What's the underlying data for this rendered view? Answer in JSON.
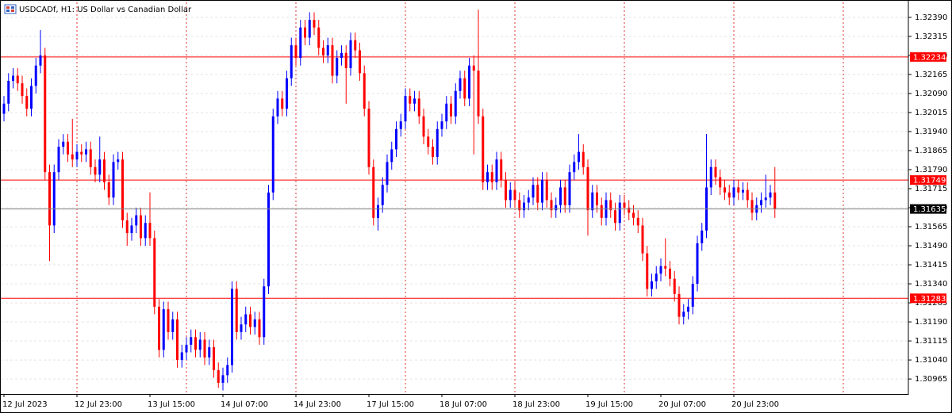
{
  "chart_data": {
    "type": "candlestick",
    "title": "USDCADf, H1:  US Dollar vs Canadian Dollar",
    "up_color": "#0000ff",
    "down_color": "#ff0000",
    "ylim": [
      1.30906,
      1.32449
    ],
    "yticks": [
      {
        "value": 1.3239,
        "label": "1.32390"
      },
      {
        "value": 1.32315,
        "label": "1.32315"
      },
      {
        "value": 1.3224,
        "label": "1.32240"
      },
      {
        "value": 1.32165,
        "label": "1.32165"
      },
      {
        "value": 1.3209,
        "label": "1.32090"
      },
      {
        "value": 1.32015,
        "label": "1.32015"
      },
      {
        "value": 1.3194,
        "label": "1.31940"
      },
      {
        "value": 1.31865,
        "label": "1.31865"
      },
      {
        "value": 1.3179,
        "label": "1.31790"
      },
      {
        "value": 1.31715,
        "label": "1.31715"
      },
      {
        "value": 1.3164,
        "label": "1.31640"
      },
      {
        "value": 1.31565,
        "label": "1.31565"
      },
      {
        "value": 1.3149,
        "label": "1.31490"
      },
      {
        "value": 1.31415,
        "label": "1.31415"
      },
      {
        "value": 1.3134,
        "label": "1.31340"
      },
      {
        "value": 1.31265,
        "label": "1.31265"
      },
      {
        "value": 1.3119,
        "label": "1.31190"
      },
      {
        "value": 1.31115,
        "label": "1.31115"
      },
      {
        "value": 1.3104,
        "label": "1.31040"
      },
      {
        "value": 1.30965,
        "label": "1.30965"
      }
    ],
    "grid": true,
    "x_tick_labels": [
      "12 Jul 2023",
      "12 Jul 23:00",
      "13 Jul 15:00",
      "14 Jul 07:00",
      "14 Jul 23:00",
      "17 Jul 15:00",
      "18 Jul 07:00",
      "18 Jul 23:00",
      "19 Jul 15:00",
      "20 Jul 07:00",
      "20 Jul 23:00"
    ],
    "levels": [
      1.32234,
      1.31749,
      1.31283
    ],
    "level_color": "#ff0000",
    "bid": 1.31635,
    "bid_color": "#808080",
    "candles": [
      [
        1.3201,
        1.3208,
        1.3198,
        1.3205
      ],
      [
        1.3205,
        1.3217,
        1.3202,
        1.3214
      ],
      [
        1.3214,
        1.3219,
        1.3211,
        1.3216
      ],
      [
        1.3216,
        1.3219,
        1.321,
        1.3213
      ],
      [
        1.3213,
        1.3216,
        1.3205,
        1.3208
      ],
      [
        1.3208,
        1.3211,
        1.32,
        1.3203
      ],
      [
        1.3203,
        1.3215,
        1.32,
        1.3212
      ],
      [
        1.3212,
        1.3223,
        1.3209,
        1.322
      ],
      [
        1.322,
        1.3234,
        1.3217,
        1.3224
      ],
      [
        1.3224,
        1.3227,
        1.3175,
        1.3178
      ],
      [
        1.3178,
        1.3181,
        1.3143,
        1.3157
      ],
      [
        1.3157,
        1.3181,
        1.3154,
        1.3178
      ],
      [
        1.3178,
        1.3191,
        1.3175,
        1.3188
      ],
      [
        1.3188,
        1.3193,
        1.3185,
        1.319
      ],
      [
        1.319,
        1.3193,
        1.3182,
        1.3185
      ],
      [
        1.3185,
        1.3199,
        1.318,
        1.3183
      ],
      [
        1.3183,
        1.3189,
        1.318,
        1.3186
      ],
      [
        1.3186,
        1.3189,
        1.3182,
        1.3185
      ],
      [
        1.3185,
        1.319,
        1.3182,
        1.3187
      ],
      [
        1.3187,
        1.319,
        1.3177,
        1.318
      ],
      [
        1.318,
        1.3183,
        1.3174,
        1.3177
      ],
      [
        1.3177,
        1.3192,
        1.3174,
        1.3183
      ],
      [
        1.3183,
        1.3186,
        1.3171,
        1.3174
      ],
      [
        1.3174,
        1.3177,
        1.3165,
        1.3168
      ],
      [
        1.3168,
        1.3185,
        1.3165,
        1.3182
      ],
      [
        1.3182,
        1.3186,
        1.3179,
        1.3183
      ],
      [
        1.3183,
        1.3186,
        1.3156,
        1.3159
      ],
      [
        1.3159,
        1.3162,
        1.3149,
        1.3154
      ],
      [
        1.3154,
        1.316,
        1.3151,
        1.3157
      ],
      [
        1.3157,
        1.3164,
        1.3154,
        1.3161
      ],
      [
        1.3161,
        1.3164,
        1.3149,
        1.3152
      ],
      [
        1.3152,
        1.3161,
        1.3149,
        1.3158
      ],
      [
        1.3158,
        1.317,
        1.3149,
        1.3152
      ],
      [
        1.3152,
        1.3155,
        1.3122,
        1.3125
      ],
      [
        1.3125,
        1.3128,
        1.3105,
        1.3108
      ],
      [
        1.3108,
        1.3127,
        1.3105,
        1.3124
      ],
      [
        1.3124,
        1.3127,
        1.3112,
        1.3115
      ],
      [
        1.3115,
        1.3123,
        1.3112,
        1.312
      ],
      [
        1.312,
        1.3123,
        1.3101,
        1.3104
      ],
      [
        1.3104,
        1.311,
        1.3101,
        1.3107
      ],
      [
        1.3107,
        1.3113,
        1.3104,
        1.311
      ],
      [
        1.311,
        1.3116,
        1.3107,
        1.3113
      ],
      [
        1.3113,
        1.3116,
        1.3105,
        1.3108
      ],
      [
        1.3108,
        1.3115,
        1.3105,
        1.3112
      ],
      [
        1.3112,
        1.3115,
        1.3102,
        1.3105
      ],
      [
        1.3105,
        1.3112,
        1.3102,
        1.3109
      ],
      [
        1.3109,
        1.3112,
        1.3097,
        1.31
      ],
      [
        1.31,
        1.3103,
        1.3093,
        1.3095
      ],
      [
        1.3095,
        1.3101,
        1.3092,
        1.3098
      ],
      [
        1.3098,
        1.3105,
        1.3095,
        1.3102
      ],
      [
        1.3102,
        1.3135,
        1.3099,
        1.3132
      ],
      [
        1.3132,
        1.3135,
        1.3112,
        1.3115
      ],
      [
        1.3115,
        1.3121,
        1.3112,
        1.3118
      ],
      [
        1.3118,
        1.3125,
        1.3115,
        1.3122
      ],
      [
        1.3122,
        1.3125,
        1.3114,
        1.3117
      ],
      [
        1.3117,
        1.3123,
        1.3114,
        1.312
      ],
      [
        1.312,
        1.3123,
        1.311,
        1.3113
      ],
      [
        1.3113,
        1.3136,
        1.311,
        1.3133
      ],
      [
        1.3133,
        1.3173,
        1.313,
        1.317
      ],
      [
        1.317,
        1.3203,
        1.3167,
        1.32
      ],
      [
        1.32,
        1.321,
        1.3197,
        1.3207
      ],
      [
        1.3207,
        1.321,
        1.32,
        1.3203
      ],
      [
        1.3203,
        1.3218,
        1.32,
        1.3215
      ],
      [
        1.3215,
        1.3231,
        1.3212,
        1.3228
      ],
      [
        1.3228,
        1.3231,
        1.322,
        1.3223
      ],
      [
        1.3223,
        1.3238,
        1.322,
        1.3235
      ],
      [
        1.3235,
        1.3238,
        1.3228,
        1.3231
      ],
      [
        1.3231,
        1.3241,
        1.3228,
        1.3238
      ],
      [
        1.3238,
        1.3241,
        1.3232,
        1.3235
      ],
      [
        1.3235,
        1.3238,
        1.3224,
        1.3227
      ],
      [
        1.3227,
        1.323,
        1.3221,
        1.3224
      ],
      [
        1.3224,
        1.3231,
        1.3221,
        1.3228
      ],
      [
        1.3228,
        1.3231,
        1.3213,
        1.3216
      ],
      [
        1.3216,
        1.3226,
        1.3213,
        1.3223
      ],
      [
        1.3223,
        1.3228,
        1.322,
        1.3225
      ],
      [
        1.3225,
        1.3228,
        1.3205,
        1.3219
      ],
      [
        1.3219,
        1.3233,
        1.3216,
        1.323
      ],
      [
        1.323,
        1.3233,
        1.3223,
        1.3226
      ],
      [
        1.3226,
        1.3229,
        1.3214,
        1.3217
      ],
      [
        1.3217,
        1.322,
        1.32,
        1.3203
      ],
      [
        1.3203,
        1.3206,
        1.3177,
        1.318
      ],
      [
        1.318,
        1.3183,
        1.3157,
        1.316
      ],
      [
        1.316,
        1.3168,
        1.3155,
        1.3165
      ],
      [
        1.3165,
        1.3176,
        1.3162,
        1.3173
      ],
      [
        1.3173,
        1.3185,
        1.317,
        1.3182
      ],
      [
        1.3182,
        1.319,
        1.3179,
        1.3187
      ],
      [
        1.3187,
        1.3198,
        1.3184,
        1.3195
      ],
      [
        1.3195,
        1.3201,
        1.3192,
        1.3198
      ],
      [
        1.3198,
        1.3211,
        1.3195,
        1.3208
      ],
      [
        1.3208,
        1.3211,
        1.3202,
        1.3205
      ],
      [
        1.3205,
        1.321,
        1.3202,
        1.3207
      ],
      [
        1.3207,
        1.321,
        1.3197,
        1.32
      ],
      [
        1.32,
        1.3203,
        1.3189,
        1.3192
      ],
      [
        1.3192,
        1.3195,
        1.3185,
        1.3188
      ],
      [
        1.3188,
        1.3191,
        1.3181,
        1.3184
      ],
      [
        1.3184,
        1.3198,
        1.3181,
        1.3195
      ],
      [
        1.3195,
        1.3201,
        1.3192,
        1.3198
      ],
      [
        1.3198,
        1.3208,
        1.3195,
        1.3205
      ],
      [
        1.3205,
        1.3208,
        1.3197,
        1.32
      ],
      [
        1.32,
        1.3213,
        1.3197,
        1.321
      ],
      [
        1.321,
        1.3218,
        1.3207,
        1.3215
      ],
      [
        1.3215,
        1.3218,
        1.3204,
        1.3207
      ],
      [
        1.3207,
        1.3223,
        1.3204,
        1.322
      ],
      [
        1.322,
        1.3224,
        1.3185,
        1.3218
      ],
      [
        1.3218,
        1.3242,
        1.3197,
        1.32
      ],
      [
        1.32,
        1.3203,
        1.3171,
        1.3174
      ],
      [
        1.3174,
        1.3181,
        1.3171,
        1.3178
      ],
      [
        1.3178,
        1.3181,
        1.3171,
        1.3174
      ],
      [
        1.3174,
        1.3186,
        1.3171,
        1.3183
      ],
      [
        1.3183,
        1.3186,
        1.3172,
        1.3175
      ],
      [
        1.3175,
        1.3178,
        1.3164,
        1.3167
      ],
      [
        1.3167,
        1.3174,
        1.3164,
        1.3171
      ],
      [
        1.3171,
        1.3174,
        1.3164,
        1.3167
      ],
      [
        1.3167,
        1.317,
        1.316,
        1.3163
      ],
      [
        1.3163,
        1.3169,
        1.316,
        1.3166
      ],
      [
        1.3166,
        1.3171,
        1.3163,
        1.3168
      ],
      [
        1.3168,
        1.3176,
        1.3165,
        1.3173
      ],
      [
        1.3173,
        1.3176,
        1.3163,
        1.3166
      ],
      [
        1.3166,
        1.3178,
        1.3163,
        1.3175
      ],
      [
        1.3175,
        1.3178,
        1.3164,
        1.3167
      ],
      [
        1.3167,
        1.317,
        1.316,
        1.3163
      ],
      [
        1.3163,
        1.3168,
        1.316,
        1.3165
      ],
      [
        1.3165,
        1.3175,
        1.3162,
        1.3172
      ],
      [
        1.3172,
        1.3175,
        1.3162,
        1.3165
      ],
      [
        1.3165,
        1.3181,
        1.3162,
        1.3178
      ],
      [
        1.3178,
        1.3185,
        1.3175,
        1.3182
      ],
      [
        1.3182,
        1.3193,
        1.3179,
        1.3186
      ],
      [
        1.3186,
        1.3189,
        1.3177,
        1.318
      ],
      [
        1.318,
        1.3183,
        1.3153,
        1.3163
      ],
      [
        1.3163,
        1.3173,
        1.316,
        1.317
      ],
      [
        1.317,
        1.3173,
        1.3162,
        1.3165
      ],
      [
        1.3165,
        1.3168,
        1.3157,
        1.316
      ],
      [
        1.316,
        1.317,
        1.3157,
        1.3167
      ],
      [
        1.3167,
        1.317,
        1.316,
        1.3163
      ],
      [
        1.3163,
        1.3166,
        1.3155,
        1.3158
      ],
      [
        1.3158,
        1.3169,
        1.3155,
        1.3166
      ],
      [
        1.3166,
        1.3169,
        1.3161,
        1.3164
      ],
      [
        1.3164,
        1.3167,
        1.3159,
        1.3162
      ],
      [
        1.3162,
        1.3165,
        1.3157,
        1.316
      ],
      [
        1.316,
        1.3163,
        1.3154,
        1.3157
      ],
      [
        1.3157,
        1.316,
        1.3143,
        1.3146
      ],
      [
        1.3146,
        1.3149,
        1.3129,
        1.3132
      ],
      [
        1.3132,
        1.3138,
        1.3129,
        1.3135
      ],
      [
        1.3135,
        1.3141,
        1.3132,
        1.3138
      ],
      [
        1.3138,
        1.3144,
        1.3135,
        1.3141
      ],
      [
        1.3141,
        1.3152,
        1.3137,
        1.314
      ],
      [
        1.314,
        1.3143,
        1.3133,
        1.3136
      ],
      [
        1.3136,
        1.3139,
        1.3127,
        1.313
      ],
      [
        1.313,
        1.3133,
        1.3118,
        1.3121
      ],
      [
        1.3121,
        1.3126,
        1.3118,
        1.3123
      ],
      [
        1.3123,
        1.3128,
        1.312,
        1.3125
      ],
      [
        1.3125,
        1.3137,
        1.3122,
        1.3134
      ],
      [
        1.3134,
        1.3153,
        1.3131,
        1.315
      ],
      [
        1.315,
        1.3158,
        1.3147,
        1.3155
      ],
      [
        1.3155,
        1.3193,
        1.3152,
        1.3172
      ],
      [
        1.3172,
        1.3183,
        1.3169,
        1.318
      ],
      [
        1.318,
        1.3183,
        1.3173,
        1.3176
      ],
      [
        1.3176,
        1.3179,
        1.3169,
        1.3172
      ],
      [
        1.3172,
        1.3175,
        1.3167,
        1.317
      ],
      [
        1.317,
        1.3173,
        1.3165,
        1.3168
      ],
      [
        1.3168,
        1.3175,
        1.3165,
        1.3172
      ],
      [
        1.3172,
        1.3175,
        1.3167,
        1.317
      ],
      [
        1.317,
        1.3174,
        1.3167,
        1.3171
      ],
      [
        1.3171,
        1.3174,
        1.3164,
        1.3167
      ],
      [
        1.3167,
        1.317,
        1.3159,
        1.3162
      ],
      [
        1.3162,
        1.3168,
        1.3159,
        1.3165
      ],
      [
        1.3165,
        1.317,
        1.3162,
        1.3167
      ],
      [
        1.3167,
        1.3177,
        1.3164,
        1.3168
      ],
      [
        1.3168,
        1.3173,
        1.3165,
        1.317
      ],
      [
        1.317,
        1.318,
        1.316,
        1.31635
      ]
    ]
  }
}
